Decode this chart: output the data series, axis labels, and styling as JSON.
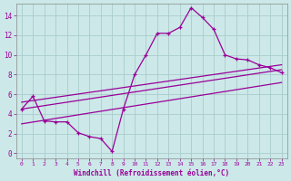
{
  "xlabel": "Windchill (Refroidissement éolien,°C)",
  "bg_color": "#cce8e8",
  "grid_color": "#aacccc",
  "line_color": "#990099",
  "xlim": [
    -0.5,
    23.5
  ],
  "ylim": [
    -0.5,
    15.2
  ],
  "yticks": [
    0,
    2,
    4,
    6,
    8,
    10,
    12,
    14
  ],
  "xticks": [
    0,
    1,
    2,
    3,
    4,
    5,
    6,
    7,
    8,
    9,
    10,
    11,
    12,
    13,
    14,
    15,
    16,
    17,
    18,
    19,
    20,
    21,
    22,
    23
  ],
  "hours": [
    0,
    1,
    2,
    3,
    4,
    5,
    6,
    7,
    8,
    9,
    10,
    11,
    12,
    13,
    14,
    15,
    16,
    17,
    18,
    19,
    20,
    21,
    22,
    23
  ],
  "temp": [
    4.5,
    5.8,
    3.3,
    3.2,
    3.2,
    2.1,
    1.7,
    1.5,
    0.2,
    4.5,
    8.0,
    10.0,
    12.2,
    12.2,
    12.8,
    14.8,
    13.8,
    12.6,
    10.0,
    9.6,
    9.5,
    9.0,
    8.7,
    8.2
  ],
  "reg_line1_x": [
    0,
    23
  ],
  "reg_line1_y": [
    3.0,
    7.2
  ],
  "reg_line2_x": [
    0,
    23
  ],
  "reg_line2_y": [
    4.5,
    8.5
  ],
  "reg_line3_x": [
    0,
    23
  ],
  "reg_line3_y": [
    5.2,
    9.0
  ]
}
